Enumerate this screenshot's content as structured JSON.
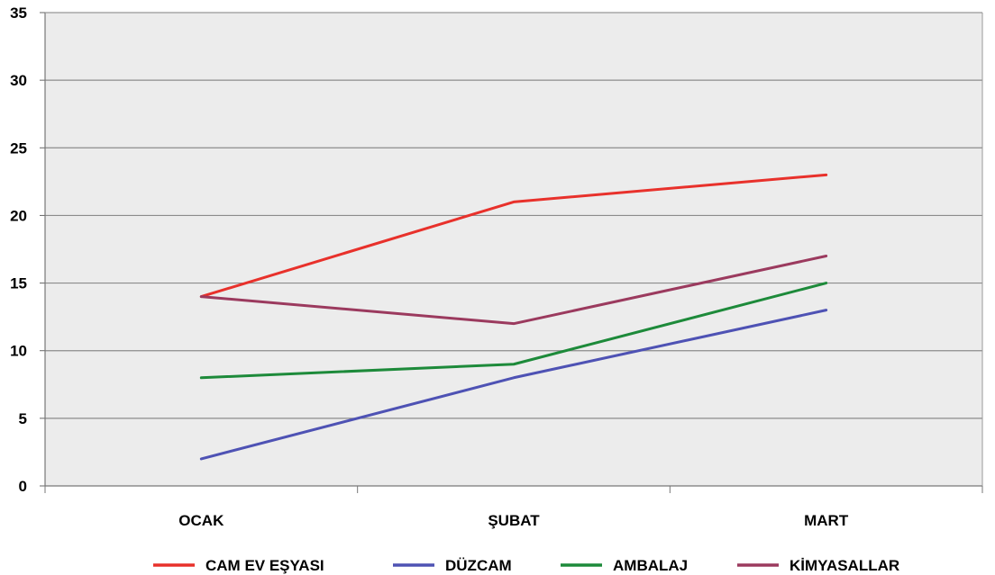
{
  "chart_data": {
    "type": "line",
    "title": "",
    "xlabel": "",
    "ylabel": "",
    "categories": [
      "OCAK",
      "ŞUBAT",
      "MART"
    ],
    "ylim": [
      0,
      35
    ],
    "yticks": [
      0,
      5,
      10,
      15,
      20,
      25,
      30,
      35
    ],
    "grid": true,
    "legend_position": "bottom",
    "plot_background": "#ececec",
    "series": [
      {
        "name": "CAM EV EŞYASI",
        "color": "#e8312b",
        "values": [
          14,
          21,
          23
        ]
      },
      {
        "name": "DÜZCAM",
        "color": "#4e52b4",
        "values": [
          2,
          8,
          13
        ]
      },
      {
        "name": "AMBALAJ",
        "color": "#1d8a3a",
        "values": [
          8,
          9,
          15
        ]
      },
      {
        "name": "KİMYASALLAR",
        "color": "#9b3a5e",
        "values": [
          14,
          12,
          17
        ]
      }
    ]
  }
}
